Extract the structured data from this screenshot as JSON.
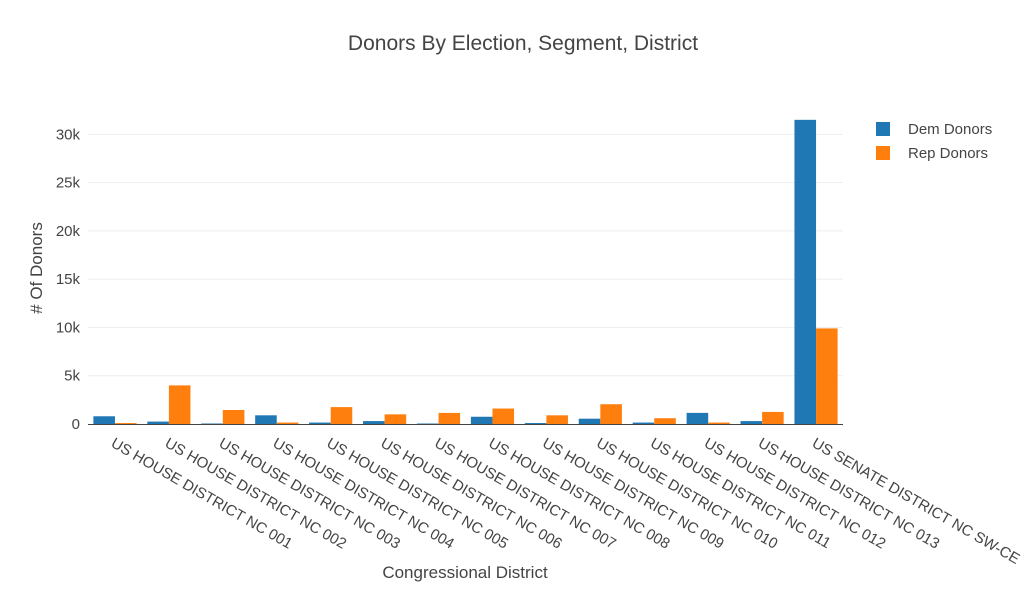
{
  "chart_data": {
    "type": "bar",
    "title": "Donors By Election, Segment, District",
    "xlabel": "Congressional District",
    "ylabel": "# Of Donors",
    "ylim": [
      0,
      32000
    ],
    "yticks": [
      0,
      5000,
      10000,
      15000,
      20000,
      25000,
      30000
    ],
    "ytick_labels": [
      "0",
      "5k",
      "10k",
      "15k",
      "20k",
      "25k",
      "30k"
    ],
    "grid": true,
    "legend_position": "top-right",
    "categories": [
      "US HOUSE DISTRICT NC 001",
      "US HOUSE DISTRICT NC 002",
      "US HOUSE DISTRICT NC 003",
      "US HOUSE DISTRICT NC 004",
      "US HOUSE DISTRICT NC 005",
      "US HOUSE DISTRICT NC 006",
      "US HOUSE DISTRICT NC 007",
      "US HOUSE DISTRICT NC 008",
      "US HOUSE DISTRICT NC 009",
      "US HOUSE DISTRICT NC 010",
      "US HOUSE DISTRICT NC 011",
      "US HOUSE DISTRICT NC 012",
      "US HOUSE DISTRICT NC 013",
      "US SENATE DISTRICT NC SW-CE"
    ],
    "series": [
      {
        "name": "Dem Donors",
        "color": "#1f77b4",
        "values": [
          800,
          250,
          50,
          900,
          150,
          300,
          50,
          750,
          100,
          550,
          150,
          1150,
          300,
          31500
        ]
      },
      {
        "name": "Rep Donors",
        "color": "#ff7f0e",
        "values": [
          100,
          4000,
          1450,
          150,
          1750,
          1000,
          1150,
          1600,
          900,
          2050,
          600,
          150,
          1250,
          9900
        ]
      }
    ]
  }
}
